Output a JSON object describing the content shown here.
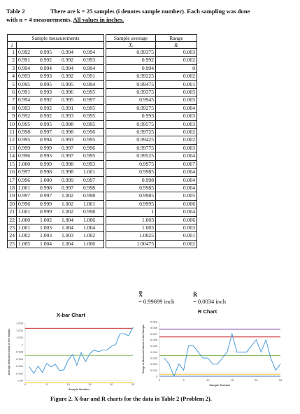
{
  "caption": {
    "label": "Table 2",
    "line1": "There are k = 25 samples (i denotes sample number). Each sampling was done",
    "line2_pre": "with n = 4 measurements. ",
    "line2_u": "All values in inches."
  },
  "table": {
    "header_measurements": "Sample measurements",
    "header_average": "Sample average",
    "header_range": "Range",
    "col_i": "i",
    "col_xbar": "X̄ᵢ",
    "col_r": "Rᵢ",
    "rows": [
      {
        "i": "1",
        "m": [
          "0.992",
          "0.995",
          "0.994",
          "0.994"
        ],
        "avg": "0.99375",
        "r": "0.003"
      },
      {
        "i": "2",
        "m": [
          "0.991",
          "0.992",
          "0.992",
          "0.993"
        ],
        "avg": "0.992",
        "r": "0.002"
      },
      {
        "i": "3",
        "m": [
          "0.994",
          "0.994",
          "0.994",
          "0.994"
        ],
        "avg": "0.994",
        "r": "0"
      },
      {
        "i": "4",
        "m": [
          "0.993",
          "0.993",
          "0.992",
          "0.991"
        ],
        "avg": "0.99225",
        "r": "0.002"
      },
      {
        "i": "5",
        "m": [
          "0.995",
          "0.995",
          "0.995",
          "0.994"
        ],
        "avg": "0.99475",
        "r": "0.001"
      },
      {
        "i": "6",
        "m": [
          "0.991",
          "0.993",
          "0.996",
          "0.995"
        ],
        "avg": "0.99375",
        "r": "0.005"
      },
      {
        "i": "7",
        "m": [
          "0.994",
          "0.992",
          "0.995",
          "0.997"
        ],
        "avg": "0.9945",
        "r": "0.005"
      },
      {
        "i": "8",
        "m": [
          "0.993",
          "0.992",
          "0.991",
          "0.995"
        ],
        "avg": "0.99275",
        "r": "0.004"
      },
      {
        "i": "9",
        "m": [
          "0.992",
          "0.992",
          "0.993",
          "0.995"
        ],
        "avg": "0.993",
        "r": "0.003"
      },
      {
        "i": "10",
        "m": [
          "0.995",
          "0.995",
          "0.998",
          "0.995"
        ],
        "avg": "0.99575",
        "r": "0.003"
      },
      {
        "i": "11",
        "m": [
          "0.998",
          "0.997",
          "0.998",
          "0.996"
        ],
        "avg": "0.99725",
        "r": "0.002"
      },
      {
        "i": "12",
        "m": [
          "0.995",
          "0.994",
          "0.993",
          "0.995"
        ],
        "avg": "0.99425",
        "r": "0.002"
      },
      {
        "i": "13",
        "m": [
          "0.999",
          "0.999",
          "0.997",
          "0.996"
        ],
        "avg": "0.99775",
        "r": "0.003"
      },
      {
        "i": "14",
        "m": [
          "0.996",
          "0.993",
          "0.997",
          "0.995"
        ],
        "avg": "0.99525",
        "r": "0.004"
      },
      {
        "i": "15",
        "m": [
          "1.000",
          "0.999",
          "0.998",
          "0.993"
        ],
        "avg": "0.9975",
        "r": "0.007"
      },
      {
        "i": "16",
        "m": [
          "0.997",
          "0.998",
          "0.998",
          "1.001"
        ],
        "avg": "0.9985",
        "r": "0.004"
      },
      {
        "i": "17",
        "m": [
          "0.996",
          "1.000",
          "0.999",
          "0.997"
        ],
        "avg": "0.998",
        "r": "0.004"
      },
      {
        "i": "18",
        "m": [
          "1.001",
          "0.998",
          "0.997",
          "0.998"
        ],
        "avg": "0.9985",
        "r": "0.004"
      },
      {
        "i": "19",
        "m": [
          "0.997",
          "0.997",
          "1.002",
          "0.998"
        ],
        "avg": "0.9985",
        "r": "0.005"
      },
      {
        "i": "20",
        "m": [
          "0.996",
          "0.999",
          "1.002",
          "1.001"
        ],
        "avg": "0.9995",
        "r": "0.006"
      },
      {
        "i": "21",
        "m": [
          "1.001",
          "0.999",
          "1.002",
          "0.998"
        ],
        "avg": "1",
        "r": "0.004"
      },
      {
        "i": "22",
        "m": [
          "1.000",
          "1.002",
          "1.004",
          "1.006"
        ],
        "avg": "1.003",
        "r": "0.006"
      },
      {
        "i": "23",
        "m": [
          "1.001",
          "1.003",
          "1.004",
          "1.004"
        ],
        "avg": "1.003",
        "r": "0.003"
      },
      {
        "i": "24",
        "m": [
          "1.002",
          "1.003",
          "1.003",
          "1.002"
        ],
        "avg": "1.0025",
        "r": "0.001"
      },
      {
        "i": "25",
        "m": [
          "1.005",
          "1.004",
          "1.004",
          "1.006"
        ],
        "avg": "1.00475",
        "r": "0.002"
      }
    ]
  },
  "summary": {
    "xbar_symbol": "X̿",
    "xbar_value": "= 0.99699 inch",
    "rbar_symbol": "R̄",
    "rbar_value": "= 0.0034 inch"
  },
  "figure_caption": "Figure 2. X-bar and R charts for the data in Table 2 (Problem 2).",
  "chart_data": [
    {
      "type": "line",
      "title": "X-bar Chart",
      "xlabel": "Sample Number",
      "ylabel": "Average Measured Value in the Sample",
      "x": [
        1,
        2,
        3,
        4,
        5,
        6,
        7,
        8,
        9,
        10,
        11,
        12,
        13,
        14,
        15,
        16,
        17,
        18,
        19,
        20,
        21,
        22,
        23,
        24,
        25
      ],
      "values": [
        0.99375,
        0.992,
        0.994,
        0.99225,
        0.99475,
        0.99375,
        0.9945,
        0.99275,
        0.993,
        0.99575,
        0.99725,
        0.99425,
        0.99775,
        0.99525,
        0.9975,
        0.9985,
        0.998,
        0.9985,
        0.9985,
        0.9995,
        1.0,
        1.003,
        1.003,
        1.0025,
        1.00475
      ],
      "xlim": [
        0,
        25
      ],
      "ylim": [
        0.99,
        1.006
      ],
      "yticks": [
        "0.99",
        "0.992",
        "0.994",
        "0.996",
        "0.998",
        "1",
        "1.002",
        "1.004",
        "1.006"
      ],
      "xticks": [
        "0",
        "5",
        "10",
        "15",
        "20",
        "25"
      ],
      "reference_lines": [
        1.00947,
        1.00458,
        0.99699,
        0.98939,
        0.98452
      ],
      "reference_colors": [
        "#7030a0",
        "#c00000",
        "#70ad47",
        "#ffc000",
        "#4472c4"
      ],
      "series_color": "#4a9bd6",
      "grid": false
    },
    {
      "type": "line",
      "title": "R Chart",
      "xlabel": "Sample Number",
      "ylabel": "Range of Measured Values in the Sample",
      "x": [
        1,
        2,
        3,
        4,
        5,
        6,
        7,
        8,
        9,
        10,
        11,
        12,
        13,
        14,
        15,
        16,
        17,
        18,
        19,
        20,
        21,
        22,
        23,
        24,
        25
      ],
      "values": [
        0.003,
        0.002,
        0,
        0.002,
        0.001,
        0.005,
        0.005,
        0.004,
        0.003,
        0.003,
        0.002,
        0.002,
        0.003,
        0.004,
        0.007,
        0.004,
        0.004,
        0.004,
        0.005,
        0.006,
        0.004,
        0.006,
        0.003,
        0.001,
        0.002
      ],
      "xlim": [
        0,
        25
      ],
      "ylim": [
        0,
        0.009
      ],
      "yticks": [
        "0",
        "0.001",
        "0.002",
        "0.003",
        "0.004",
        "0.005",
        "0.006",
        "0.007",
        "0.008",
        "0.009"
      ],
      "xticks": [
        "0",
        "5",
        "10",
        "15",
        "20",
        "25"
      ],
      "reference_lines": [
        0.00776,
        0.00648,
        0.0034,
        0.00032,
        0
      ],
      "reference_colors": [
        "#7030a0",
        "#c00000",
        "#70ad47",
        "#ffc000",
        "#4472c4"
      ],
      "series_color": "#4a9bd6",
      "grid": false
    }
  ]
}
